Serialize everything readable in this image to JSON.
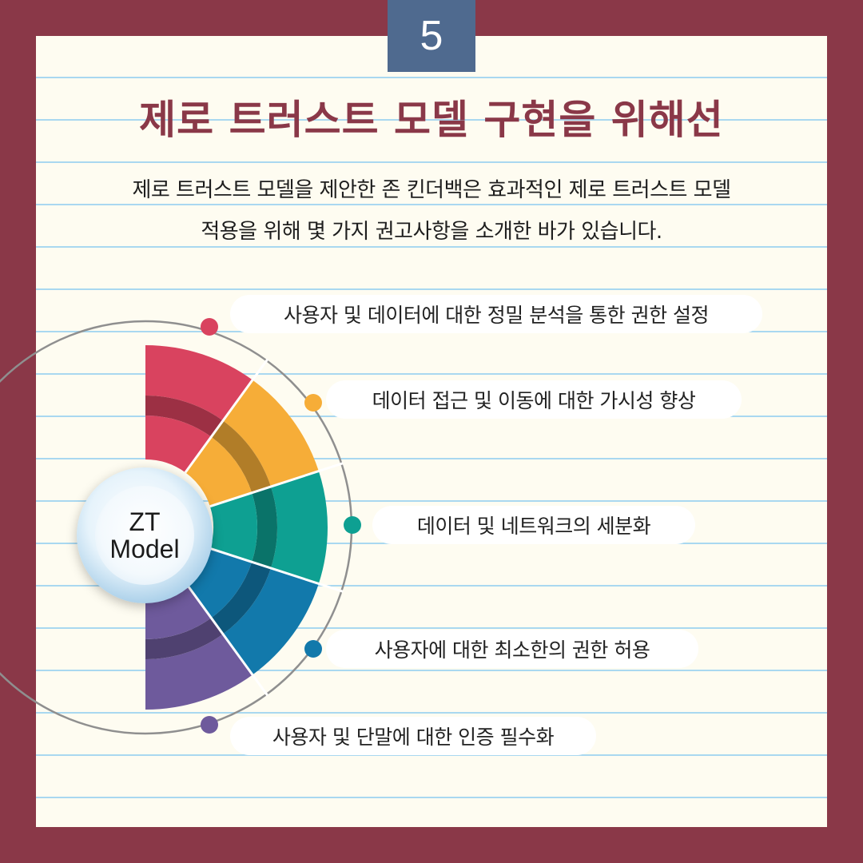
{
  "page_number": "5",
  "title": "제로 트러스트 모델 구현을 위해선",
  "intro": {
    "line1": "제로 트러스트 모델을 제안한 존 킨더백은 효과적인 제로 트러스트 모델",
    "line2": "적용을 위해 몇 가지 권고사항을 소개한 바가 있습니다."
  },
  "core": {
    "line1": "ZT",
    "line2": "Model"
  },
  "items": [
    {
      "label": "사용자 및 데이터에 대한 정밀 분석을 통한 권한 설정",
      "color": "#d9435f"
    },
    {
      "label": "데이터 접근 및 이동에 대한 가시성 향상",
      "color": "#f6ad38"
    },
    {
      "label": "데이터 및 네트워크의 세분화",
      "color": "#0ea092"
    },
    {
      "label": "사용자에 대한 최소한의 권한 허용",
      "color": "#1279ab"
    },
    {
      "label": "사용자 및 단말에 대한 인증 필수화",
      "color": "#6e5a9c"
    }
  ],
  "colors": {
    "frame": "#8a3848",
    "paper": "#fefcf1",
    "badge": "#4f6a8f",
    "title": "#8a3848"
  }
}
